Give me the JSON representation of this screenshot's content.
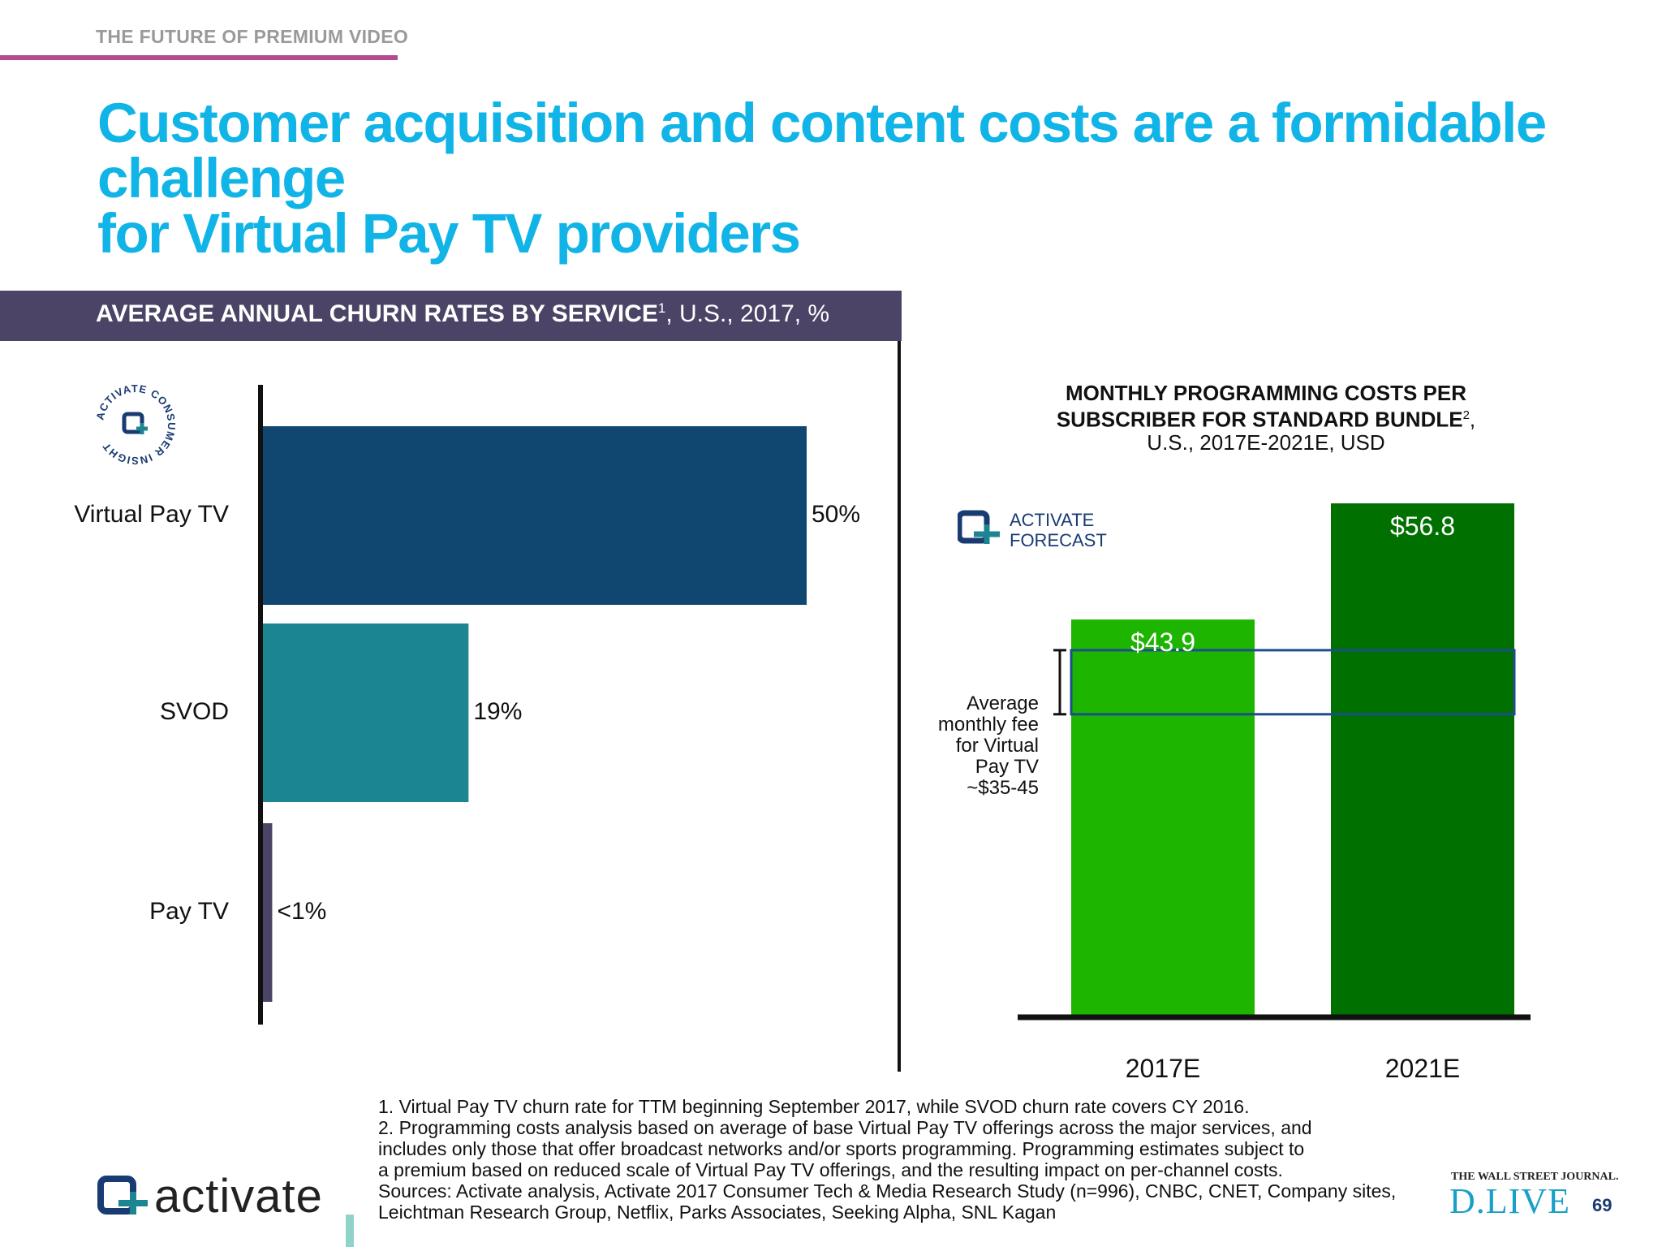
{
  "header": {
    "eyebrow": "THE FUTURE OF PREMIUM VIDEO",
    "title_line1": "Customer acquisition and content costs are a formidable challenge",
    "title_line2": "for Virtual Pay TV providers"
  },
  "left_panel": {
    "header_bold": "AVERAGE ANNUAL CHURN RATES BY SERVICE",
    "header_sup": "1",
    "header_rest": ", U.S., 2017, %",
    "badge_text": "ACTIVATE CONSUMER INSIGHT"
  },
  "right_panel": {
    "title_line1": "MONTHLY PROGRAMMING COSTS PER",
    "title_line2": "SUBSCRIBER FOR STANDARD BUNDLE",
    "title_sup": "2",
    "title_comma": ",",
    "title_line3": "U.S., 2017E-2021E, USD",
    "badge_line1": "ACTIVATE",
    "badge_line2": "FORECAST",
    "avg_note": [
      "Average",
      "monthly fee",
      "for Virtual",
      "Pay TV",
      "~$35-45"
    ]
  },
  "chart_data": [
    {
      "type": "bar",
      "orientation": "horizontal",
      "title": "AVERAGE ANNUAL CHURN RATES BY SERVICE, U.S., 2017, %",
      "categories": [
        "Virtual Pay TV",
        "SVOD",
        "Pay TV"
      ],
      "values": [
        50,
        19,
        1
      ],
      "labels": [
        "50%",
        "19%",
        "<1%"
      ],
      "colors": [
        "#0f4770",
        "#1b8591",
        "#4b4466"
      ],
      "xlim": [
        0,
        50
      ]
    },
    {
      "type": "bar",
      "orientation": "vertical",
      "title": "MONTHLY PROGRAMMING COSTS PER SUBSCRIBER FOR STANDARD BUNDLE, U.S., 2017E-2021E, USD",
      "categories": [
        "2017E",
        "2021E"
      ],
      "values": [
        43.9,
        56.8
      ],
      "labels": [
        "$43.9",
        "$56.8"
      ],
      "colors": [
        "#1eb500",
        "#007000"
      ],
      "ylim": [
        0,
        56.8
      ],
      "reference_band": {
        "label": "~$35-45",
        "range": [
          35,
          45
        ],
        "color": "#1a4f8a"
      }
    }
  ],
  "footer": {
    "notes": [
      "1. Virtual Pay TV churn rate for TTM beginning September 2017, while SVOD churn rate covers CY 2016.",
      "2. Programming costs analysis based on average of base Virtual Pay TV offerings across the major services, and",
      "includes only those that offer broadcast networks and/or sports programming. Programming estimates subject to",
      "a premium based on reduced scale of Virtual Pay TV offerings, and the resulting impact on per-channel costs.",
      "Sources: Activate analysis, Activate 2017 Consumer Tech & Media Research Study (n=996), CNBC, CNET, Company sites,",
      "Leichtman Research Group, Netflix, Parks Associates, Seeking Alpha, SNL Kagan"
    ],
    "brand": "activate",
    "wsj": "THE WALL STREET JOURNAL.",
    "dlive": "D.LIVE",
    "page_number": "69"
  }
}
